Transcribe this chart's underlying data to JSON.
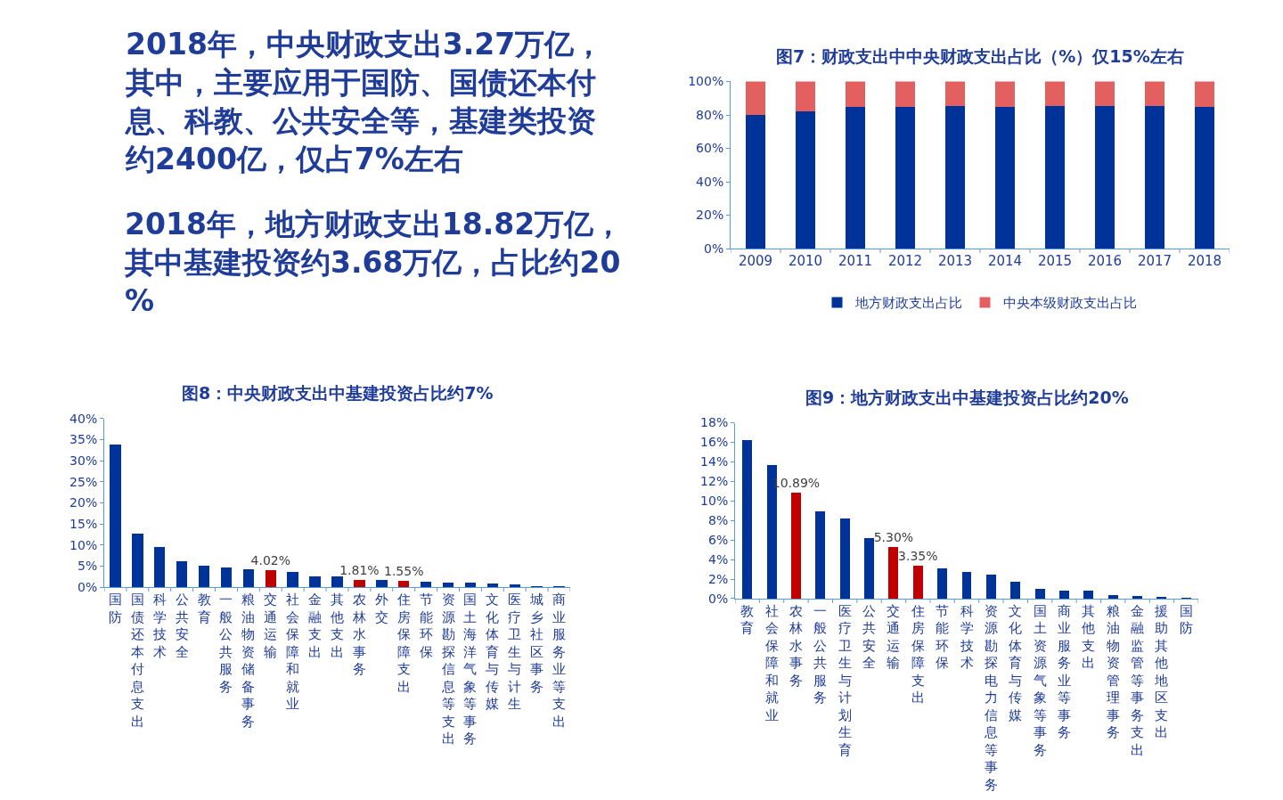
{
  "chart_data": [
    {
      "type": "other",
      "annotations": [
        "2018年，中央财政支出3.27万亿，其中，主要应用于国防、国债还本付息、科教、公共安全等，基建类投资约2400亿，仅占7%左右",
        "2018年，地方财政支出18.82万亿，其中基建投资约3.68万亿，占比约20%"
      ]
    },
    {
      "type": "bar",
      "title": "图7：财政支出中中央财政支出占比（%）仅15%左右",
      "stacked": true,
      "legend": "bottom",
      "categories": [
        "2009",
        "2010",
        "2011",
        "2012",
        "2013",
        "2014",
        "2015",
        "2016",
        "2017",
        "2018"
      ],
      "series": [
        {
          "name": "地方财政支出占比",
          "color": "#003399",
          "values": [
            80,
            82,
            85,
            85,
            85.5,
            85,
            85.5,
            85.5,
            85.3,
            85
          ]
        },
        {
          "name": "中央本级财政支出占比",
          "color": "#e46060",
          "values": [
            20,
            18,
            15,
            15,
            14.5,
            15,
            14.5,
            14.5,
            14.7,
            15
          ]
        }
      ],
      "ylim": [
        0,
        100
      ],
      "yticks": [
        {
          "value": 0,
          "label": "0%"
        },
        {
          "value": 20,
          "label": "20%"
        },
        {
          "value": 40,
          "label": "40%"
        },
        {
          "value": 60,
          "label": "60%"
        },
        {
          "value": 80,
          "label": "80%"
        },
        {
          "value": 100,
          "label": "100%"
        }
      ]
    },
    {
      "type": "bar",
      "title": "图8：中央财政支出中基建投资占比约7%",
      "categories": [
        "国防",
        "国债还本付息支出",
        "科学技术",
        "公共安全",
        "教育",
        "一般公共服务",
        "粮油物资储备事务",
        "交通运输",
        "社会保障和就业",
        "金融支出",
        "其他支出",
        "农林水事务",
        "外交",
        "住房保障支出",
        "节能环保",
        "资源勘探信息等支出",
        "国土海洋气象等事务",
        "文化体育与传媒",
        "医疗卫生与计生",
        "城乡社区事务",
        "商业服务业等支出"
      ],
      "values": [
        33.8,
        12.6,
        9.5,
        6.2,
        5.2,
        4.6,
        4.2,
        4.02,
        3.6,
        2.6,
        2.5,
        1.81,
        1.7,
        1.55,
        1.3,
        1.1,
        1.0,
        0.8,
        0.6,
        0.2,
        0.2
      ],
      "colors": [
        "#003399",
        "#003399",
        "#003399",
        "#003399",
        "#003399",
        "#003399",
        "#003399",
        "#c00000",
        "#003399",
        "#003399",
        "#003399",
        "#c00000",
        "#003399",
        "#c00000",
        "#003399",
        "#003399",
        "#003399",
        "#003399",
        "#003399",
        "#003399",
        "#003399"
      ],
      "value_labels": [
        null,
        null,
        null,
        null,
        null,
        null,
        null,
        "4.02%",
        null,
        null,
        null,
        "1.81%",
        null,
        "1.55%",
        null,
        null,
        null,
        null,
        null,
        null,
        null
      ],
      "ylim": [
        0,
        40
      ],
      "yticks": [
        {
          "value": 0,
          "label": "0%"
        },
        {
          "value": 5,
          "label": "5%"
        },
        {
          "value": 10,
          "label": "10%"
        },
        {
          "value": 15,
          "label": "15%"
        },
        {
          "value": 20,
          "label": "20%"
        },
        {
          "value": 25,
          "label": "25%"
        },
        {
          "value": 30,
          "label": "30%"
        },
        {
          "value": 35,
          "label": "35%"
        },
        {
          "value": 40,
          "label": "40%"
        }
      ]
    },
    {
      "type": "bar",
      "title": "图9：地方财政支出中基建投资占比约20%",
      "categories": [
        "教育",
        "社会保障和就业",
        "农林水事务",
        "一般公共服务",
        "医疗卫生与计划生育",
        "公共安全",
        "交通运输",
        "住房保障支出",
        "节能环保",
        "科学技术",
        "资源勘探电力信息等事务",
        "文化体育与传媒",
        "国土资源气象等事务",
        "商业服务业等事务",
        "其他支出",
        "粮油物资管理事务",
        "金融监管等事务支出",
        "援助其他地区支出",
        "国防"
      ],
      "values": [
        16.2,
        13.7,
        10.89,
        8.9,
        8.2,
        6.2,
        5.3,
        3.35,
        3.1,
        2.7,
        2.5,
        1.7,
        1.0,
        0.8,
        0.8,
        0.4,
        0.3,
        0.2,
        0.1
      ],
      "colors": [
        "#003399",
        "#003399",
        "#c00000",
        "#003399",
        "#003399",
        "#003399",
        "#c00000",
        "#c00000",
        "#003399",
        "#003399",
        "#003399",
        "#003399",
        "#003399",
        "#003399",
        "#003399",
        "#003399",
        "#003399",
        "#003399",
        "#003399"
      ],
      "value_labels": [
        null,
        null,
        "10.89%",
        null,
        null,
        null,
        "5.30%",
        "3.35%",
        null,
        null,
        null,
        null,
        null,
        null,
        null,
        null,
        null,
        null,
        null
      ],
      "ylim": [
        0,
        18
      ],
      "yticks": [
        {
          "value": 0,
          "label": "0%"
        },
        {
          "value": 2,
          "label": "2%"
        },
        {
          "value": 4,
          "label": "4%"
        },
        {
          "value": 6,
          "label": "6%"
        },
        {
          "value": 8,
          "label": "8%"
        },
        {
          "value": 10,
          "label": "10%"
        },
        {
          "value": 12,
          "label": "12%"
        },
        {
          "value": 14,
          "label": "14%"
        },
        {
          "value": 16,
          "label": "16%"
        },
        {
          "value": 18,
          "label": "18%"
        }
      ]
    }
  ]
}
